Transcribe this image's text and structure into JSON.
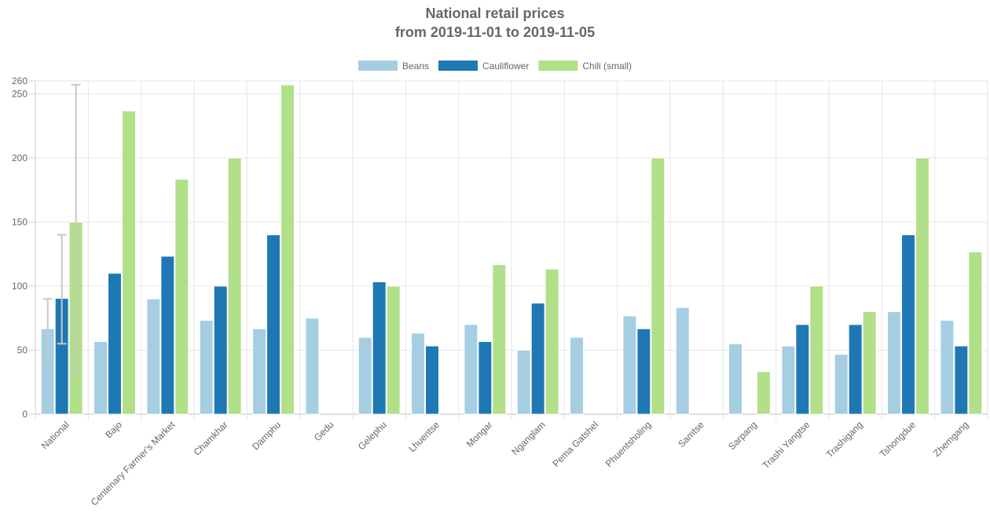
{
  "chart_data": {
    "type": "bar",
    "title": "National retail prices",
    "subtitle": "from 2019-11-01 to 2019-11-05",
    "xlabel": "",
    "ylabel": "",
    "ylim": [
      0,
      260
    ],
    "yticks": [
      "0",
      "50",
      "100",
      "150",
      "200",
      "250",
      "260"
    ],
    "legend_position": "top-center",
    "grid": true,
    "categories": [
      "National",
      "Bajo",
      "Centenary Farmer's Market",
      "Chamkhar",
      "Damphu",
      "Gedu",
      "Gelephu",
      "Lhuentse",
      "Mongar",
      "Nganglam",
      "Pema Gatshel",
      "Phuentsholing",
      "Samtse",
      "Sarpang",
      "Trashi Yangtse",
      "Trashigang",
      "Tshongdue",
      "Zhemgang"
    ],
    "series": [
      {
        "name": "Beans",
        "color": "#a6cee3",
        "values": [
          66.7,
          56.7,
          90,
          73.3,
          66.7,
          75,
          60,
          63.3,
          70,
          50,
          60,
          76.7,
          83.3,
          55,
          53.3,
          46.7,
          80,
          73.3
        ]
      },
      {
        "name": "Cauliflower",
        "color": "#1f78b4",
        "values": [
          90.4,
          110,
          123.3,
          100,
          140,
          null,
          103.3,
          53.3,
          56.7,
          86.7,
          null,
          66.7,
          null,
          null,
          70,
          70,
          140,
          53.3
        ]
      },
      {
        "name": "Chili (small)",
        "color": "#b2df8a",
        "values": [
          150,
          236.7,
          183.3,
          200,
          257,
          null,
          100,
          null,
          116.7,
          113.3,
          null,
          200,
          null,
          33.3,
          100,
          80,
          200,
          126.7
        ]
      }
    ],
    "error_bars": {
      "category": "National",
      "ranges": [
        [
          47,
          90
        ],
        [
          55,
          140
        ],
        [
          34,
          257
        ]
      ]
    }
  }
}
